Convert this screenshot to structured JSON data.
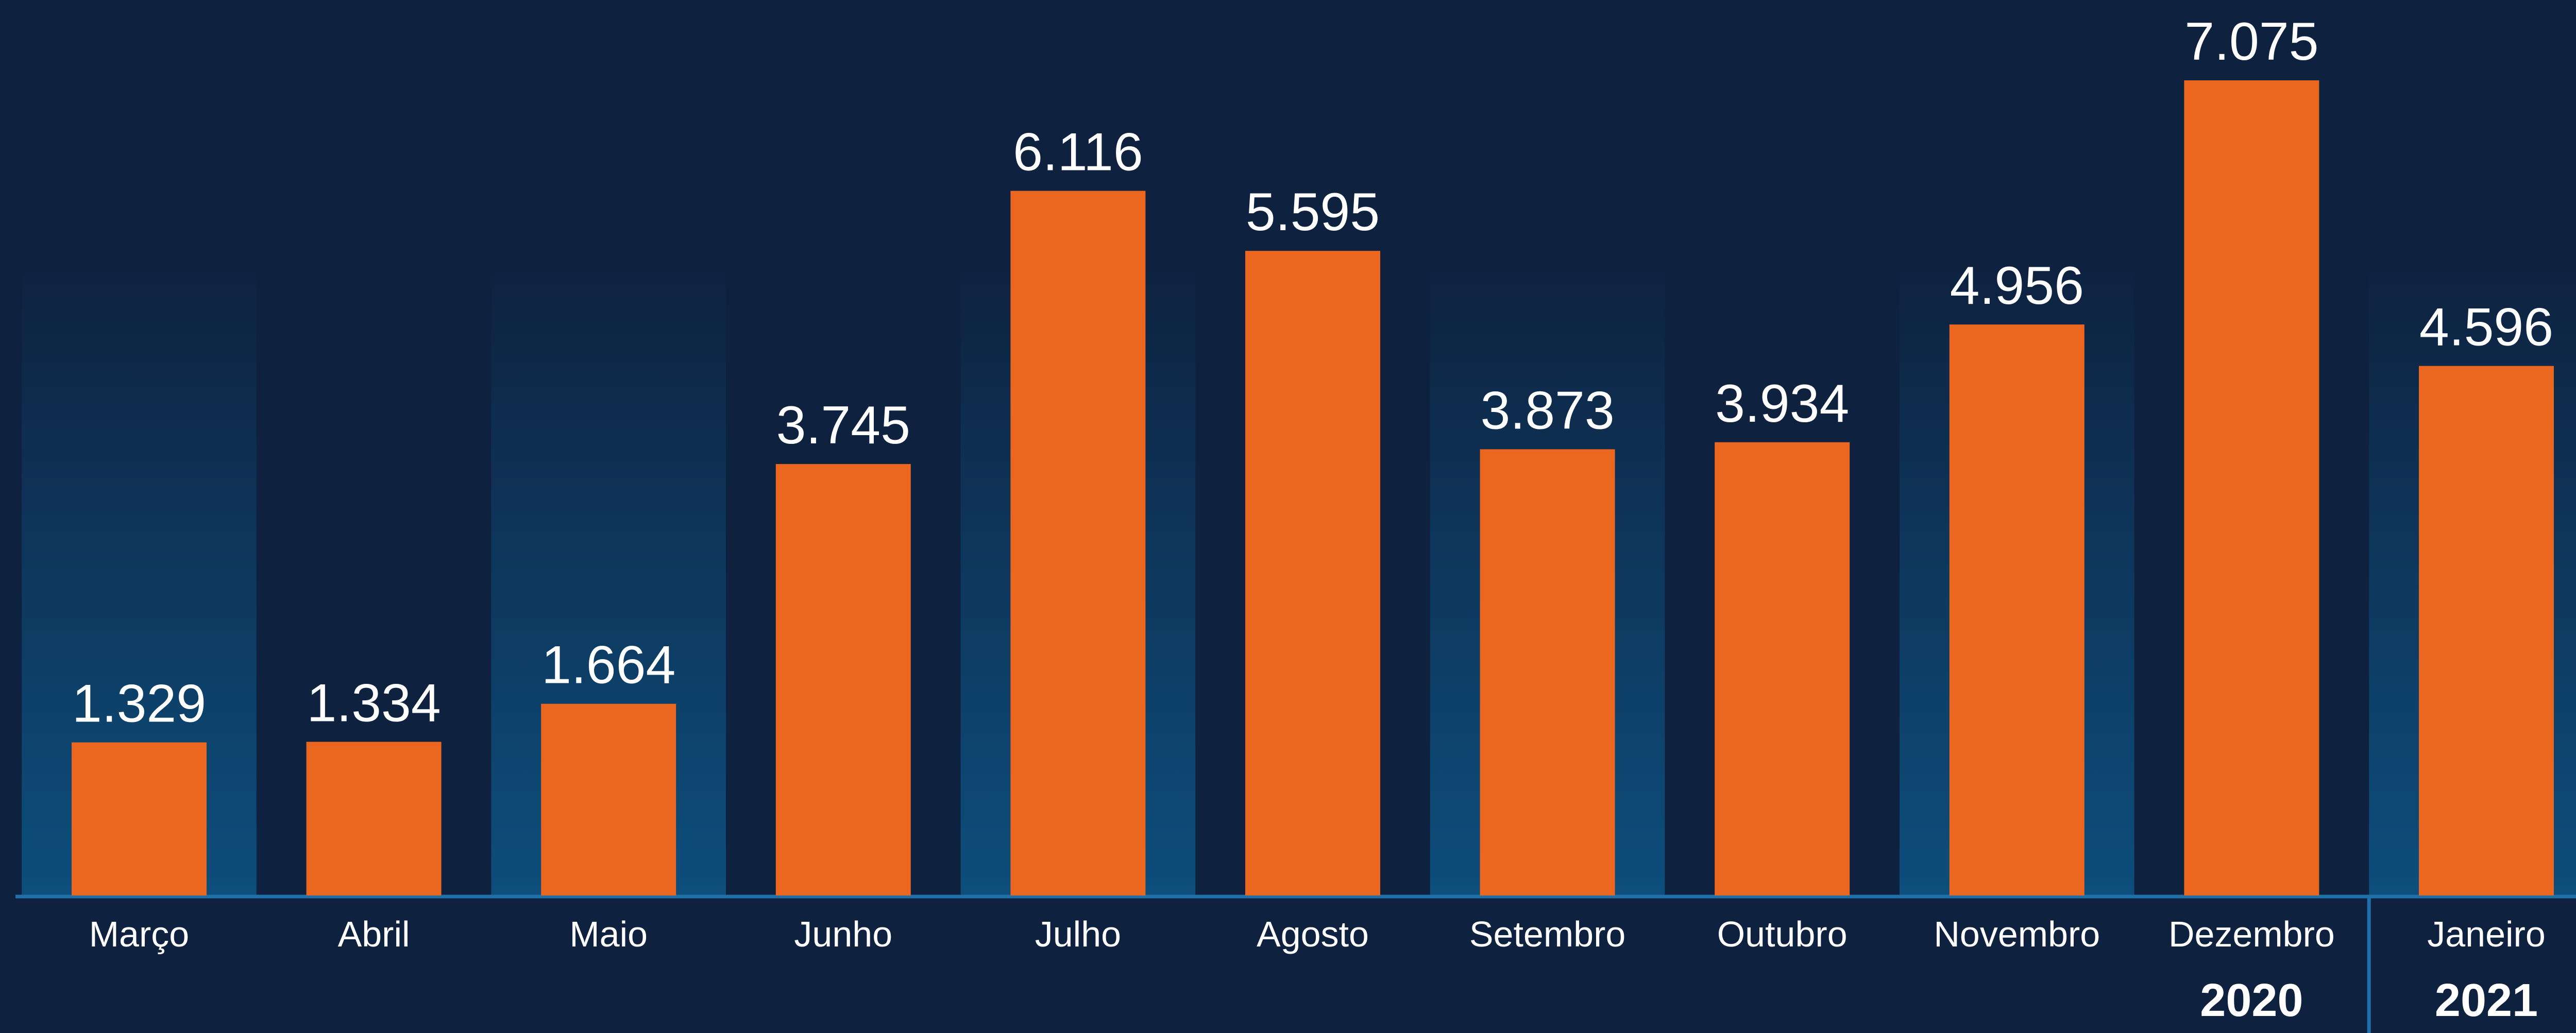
{
  "chart_data": {
    "type": "bar",
    "categories": [
      "Março",
      "Abril",
      "Maio",
      "Junho",
      "Julho",
      "Agosto",
      "Setembro",
      "Outubro",
      "Novembro",
      "Dezembro",
      "Janeiro"
    ],
    "values": [
      1329,
      1334,
      1664,
      3745,
      6116,
      5595,
      3873,
      3934,
      4956,
      7075,
      4596
    ],
    "value_labels": [
      "1.329",
      "1.334",
      "1.664",
      "3.745",
      "6.116",
      "5.595",
      "3.873",
      "3.934",
      "4.956",
      "7.075",
      "4.596"
    ],
    "color": "#eb661e",
    "groups": [
      {
        "label": "2020",
        "from": "Março",
        "to": "Dezembro"
      },
      {
        "label": "2021",
        "from": "Janeiro",
        "to": "Janeiro"
      }
    ]
  }
}
